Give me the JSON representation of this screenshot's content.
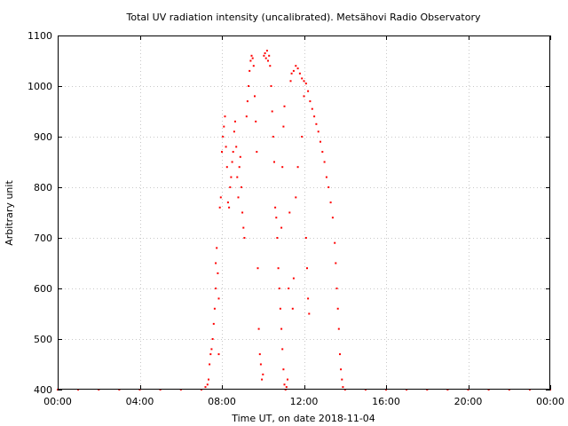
{
  "chart_data": {
    "type": "scatter",
    "title": "Total UV radiation intensity (uncalibrated). Metsähovi Radio Observatory",
    "xlabel": "Time UT, on date 2018-11-04",
    "ylabel": "Arbitrary unit",
    "xlim": [
      0,
      24
    ],
    "ylim": [
      400,
      1100
    ],
    "grid": true,
    "x_ticks": [
      {
        "value": 0,
        "label": "00:00"
      },
      {
        "value": 4,
        "label": "04:00"
      },
      {
        "value": 8,
        "label": "08:00"
      },
      {
        "value": 12,
        "label": "12:00"
      },
      {
        "value": 16,
        "label": "16:00"
      },
      {
        "value": 20,
        "label": "20:00"
      },
      {
        "value": 24,
        "label": "00:00"
      }
    ],
    "y_ticks": [
      {
        "value": 400,
        "label": "400"
      },
      {
        "value": 500,
        "label": "500"
      },
      {
        "value": 600,
        "label": "600"
      },
      {
        "value": 700,
        "label": "700"
      },
      {
        "value": 800,
        "label": "800"
      },
      {
        "value": 900,
        "label": "900"
      },
      {
        "value": 1000,
        "label": "1000"
      },
      {
        "value": 1100,
        "label": "1100"
      }
    ],
    "marker_color": "#ff0000",
    "series": [
      {
        "points": [
          [
            0.0,
            400
          ],
          [
            1.0,
            400
          ],
          [
            2.0,
            400
          ],
          [
            3.0,
            400
          ],
          [
            4.0,
            400
          ],
          [
            5.0,
            400
          ],
          [
            6.0,
            400
          ],
          [
            7.0,
            400
          ],
          [
            7.2,
            405
          ],
          [
            7.3,
            410
          ],
          [
            7.35,
            420
          ],
          [
            7.4,
            450
          ],
          [
            7.45,
            470
          ],
          [
            7.5,
            480
          ],
          [
            7.55,
            500
          ],
          [
            7.6,
            530
          ],
          [
            7.65,
            560
          ],
          [
            7.7,
            600
          ],
          [
            7.7,
            650
          ],
          [
            7.75,
            680
          ],
          [
            7.8,
            630
          ],
          [
            7.85,
            580
          ],
          [
            7.85,
            470
          ],
          [
            7.9,
            760
          ],
          [
            7.95,
            780
          ],
          [
            8.0,
            870
          ],
          [
            8.05,
            900
          ],
          [
            8.1,
            920
          ],
          [
            8.15,
            940
          ],
          [
            8.2,
            880
          ],
          [
            8.25,
            840
          ],
          [
            8.3,
            770
          ],
          [
            8.35,
            760
          ],
          [
            8.4,
            800
          ],
          [
            8.45,
            820
          ],
          [
            8.5,
            850
          ],
          [
            8.55,
            870
          ],
          [
            8.6,
            910
          ],
          [
            8.65,
            930
          ],
          [
            8.7,
            880
          ],
          [
            8.75,
            820
          ],
          [
            8.8,
            780
          ],
          [
            8.85,
            840
          ],
          [
            8.9,
            860
          ],
          [
            8.95,
            800
          ],
          [
            9.0,
            750
          ],
          [
            9.05,
            720
          ],
          [
            9.1,
            700
          ],
          [
            9.2,
            940
          ],
          [
            9.25,
            970
          ],
          [
            9.3,
            1000
          ],
          [
            9.35,
            1030
          ],
          [
            9.4,
            1050
          ],
          [
            9.45,
            1060
          ],
          [
            9.5,
            1055
          ],
          [
            9.55,
            1040
          ],
          [
            9.6,
            980
          ],
          [
            9.65,
            930
          ],
          [
            9.7,
            870
          ],
          [
            9.75,
            640
          ],
          [
            9.8,
            520
          ],
          [
            9.85,
            470
          ],
          [
            9.9,
            450
          ],
          [
            9.95,
            420
          ],
          [
            10.0,
            430
          ],
          [
            10.05,
            1060
          ],
          [
            10.1,
            1065
          ],
          [
            10.15,
            1055
          ],
          [
            10.2,
            1070
          ],
          [
            10.25,
            1050
          ],
          [
            10.3,
            1060
          ],
          [
            10.35,
            1040
          ],
          [
            10.4,
            1000
          ],
          [
            10.45,
            950
          ],
          [
            10.5,
            900
          ],
          [
            10.55,
            850
          ],
          [
            10.6,
            760
          ],
          [
            10.65,
            740
          ],
          [
            10.7,
            700
          ],
          [
            10.75,
            640
          ],
          [
            10.8,
            600
          ],
          [
            10.85,
            560
          ],
          [
            10.9,
            520
          ],
          [
            10.95,
            480
          ],
          [
            11.0,
            440
          ],
          [
            11.05,
            410
          ],
          [
            11.1,
            400
          ],
          [
            11.15,
            405
          ],
          [
            11.2,
            420
          ],
          [
            11.25,
            600
          ],
          [
            11.3,
            750
          ],
          [
            11.35,
            1010
          ],
          [
            11.4,
            1025
          ],
          [
            11.5,
            1030
          ],
          [
            11.6,
            1040
          ],
          [
            11.7,
            1035
          ],
          [
            11.8,
            1025
          ],
          [
            11.9,
            1015
          ],
          [
            12.0,
            1010
          ],
          [
            12.1,
            1005
          ],
          [
            12.2,
            990
          ],
          [
            12.3,
            970
          ],
          [
            12.4,
            955
          ],
          [
            12.5,
            940
          ],
          [
            12.6,
            925
          ],
          [
            12.7,
            910
          ],
          [
            12.8,
            890
          ],
          [
            12.9,
            870
          ],
          [
            13.0,
            850
          ],
          [
            13.1,
            820
          ],
          [
            13.2,
            800
          ],
          [
            13.3,
            770
          ],
          [
            13.4,
            740
          ],
          [
            13.5,
            690
          ],
          [
            13.55,
            650
          ],
          [
            13.6,
            600
          ],
          [
            13.65,
            560
          ],
          [
            13.7,
            520
          ],
          [
            13.75,
            470
          ],
          [
            13.8,
            440
          ],
          [
            13.85,
            420
          ],
          [
            13.9,
            405
          ],
          [
            14.0,
            400
          ],
          [
            15.0,
            400
          ],
          [
            16.0,
            400
          ],
          [
            17.0,
            400
          ],
          [
            18.0,
            400
          ],
          [
            19.0,
            400
          ],
          [
            20.0,
            400
          ],
          [
            21.0,
            400
          ],
          [
            22.0,
            400
          ],
          [
            23.0,
            400
          ],
          [
            24.0,
            400
          ],
          [
            12.0,
            980
          ],
          [
            12.1,
            700
          ],
          [
            12.15,
            640
          ],
          [
            12.2,
            580
          ],
          [
            12.25,
            550
          ],
          [
            11.9,
            900
          ],
          [
            11.7,
            840
          ],
          [
            11.6,
            780
          ],
          [
            11.5,
            620
          ],
          [
            11.45,
            560
          ],
          [
            10.9,
            720
          ],
          [
            10.95,
            840
          ],
          [
            11.0,
            920
          ],
          [
            11.05,
            960
          ]
        ]
      }
    ]
  }
}
